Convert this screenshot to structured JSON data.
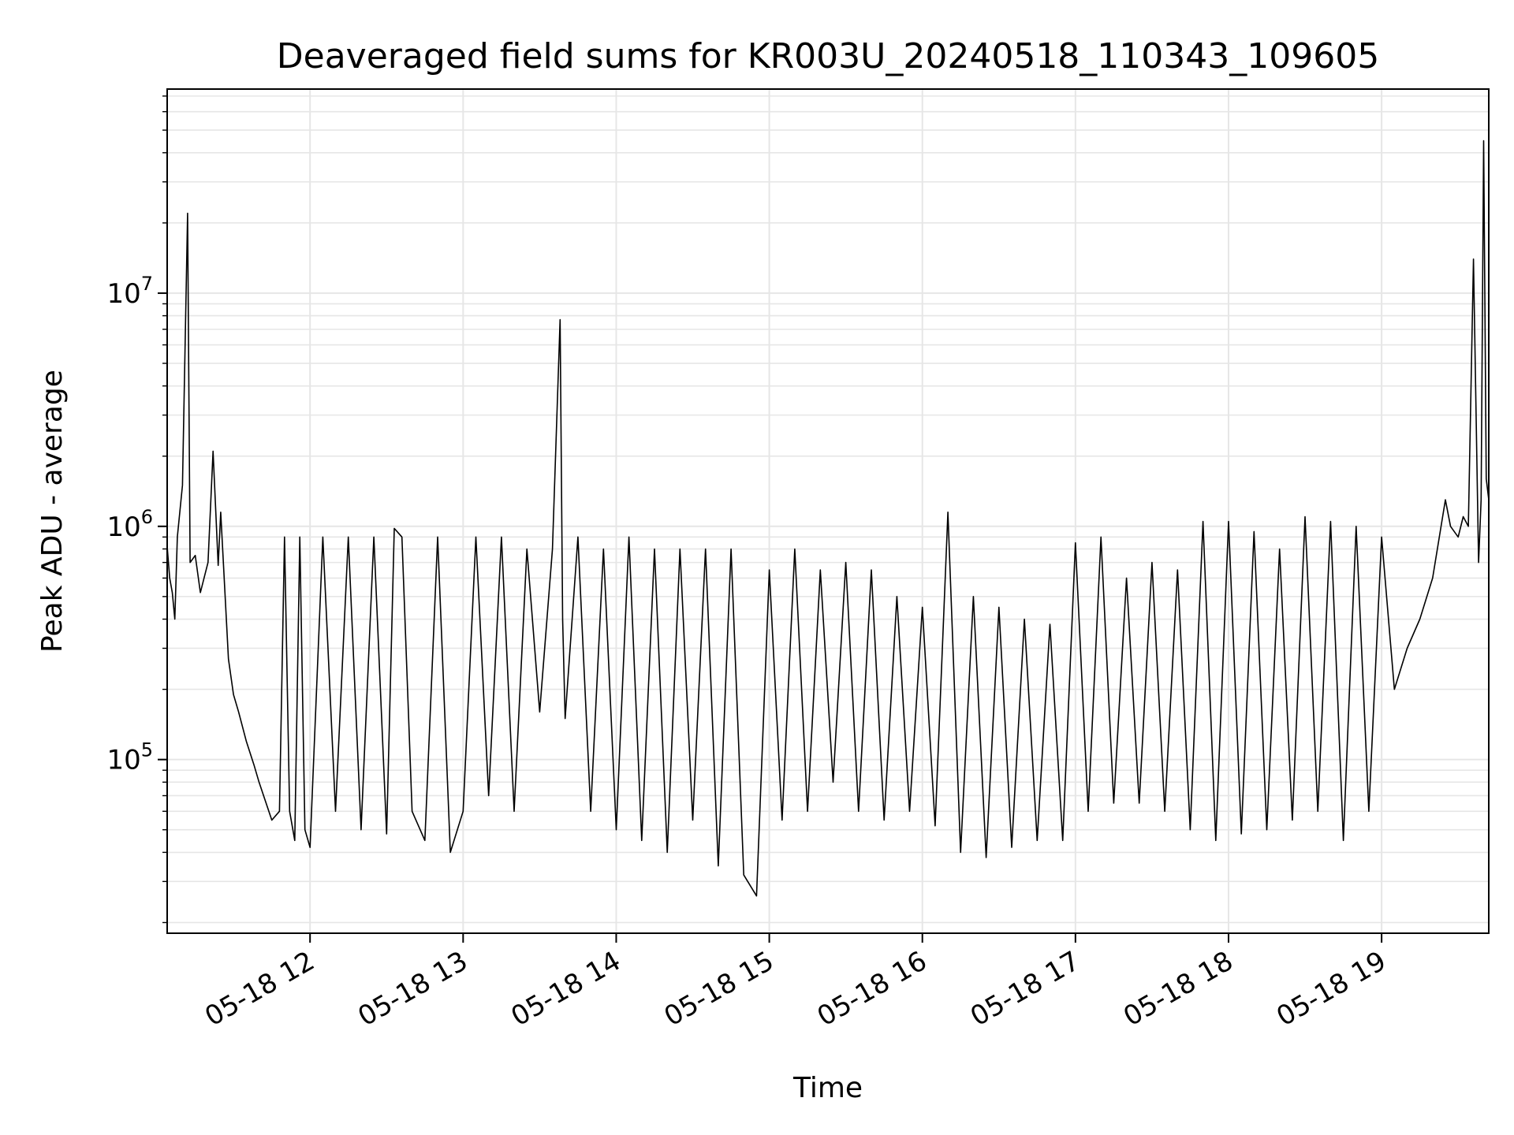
{
  "chart_data": {
    "type": "line",
    "title": "Deaveraged field sums for KR003U_20240518_110343_109605",
    "xlabel": "Time",
    "ylabel": "Peak ADU - average",
    "y_scale": "log",
    "ylim": [
      18000,
      75000000
    ],
    "xlim": [
      "05-18 11:04",
      "05-18 19:42"
    ],
    "grid": true,
    "line_color": "#000000",
    "grid_color": "#e6e6e6",
    "x_ticks": [
      {
        "t": "05-18 12:00",
        "label": "05-18 12"
      },
      {
        "t": "05-18 13:00",
        "label": "05-18 13"
      },
      {
        "t": "05-18 14:00",
        "label": "05-18 14"
      },
      {
        "t": "05-18 15:00",
        "label": "05-18 15"
      },
      {
        "t": "05-18 16:00",
        "label": "05-18 16"
      },
      {
        "t": "05-18 17:00",
        "label": "05-18 17"
      },
      {
        "t": "05-18 18:00",
        "label": "05-18 18"
      },
      {
        "t": "05-18 19:00",
        "label": "05-18 19"
      }
    ],
    "y_ticks": [
      {
        "value": 100000,
        "base": "10",
        "exp": "5"
      },
      {
        "value": 1000000,
        "base": "10",
        "exp": "6"
      },
      {
        "value": 10000000,
        "base": "10",
        "exp": "7"
      }
    ],
    "series": [
      {
        "x": [
          "05-18 11:04",
          "05-18 11:05",
          "05-18 11:06",
          "05-18 11:07",
          "05-18 11:08",
          "05-18 11:10",
          "05-18 11:12",
          "05-18 11:13",
          "05-18 11:15",
          "05-18 11:17",
          "05-18 11:20",
          "05-18 11:22",
          "05-18 11:24",
          "05-18 11:25",
          "05-18 11:28",
          "05-18 11:30",
          "05-18 11:32",
          "05-18 11:35",
          "05-18 11:38",
          "05-18 11:40",
          "05-18 11:45",
          "05-18 11:48",
          "05-18 11:50",
          "05-18 11:52",
          "05-18 11:54",
          "05-18 11:56",
          "05-18 11:58",
          "05-18 12:00",
          "05-18 12:05",
          "05-18 12:10",
          "05-18 12:15",
          "05-18 12:20",
          "05-18 12:25",
          "05-18 12:30",
          "05-18 12:33",
          "05-18 12:36",
          "05-18 12:40",
          "05-18 12:45",
          "05-18 12:50",
          "05-18 12:55",
          "05-18 13:00",
          "05-18 13:05",
          "05-18 13:10",
          "05-18 13:15",
          "05-18 13:20",
          "05-18 13:25",
          "05-18 13:30",
          "05-18 13:35",
          "05-18 13:38",
          "05-18 13:39",
          "05-18 13:40",
          "05-18 13:45",
          "05-18 13:50",
          "05-18 13:55",
          "05-18 14:00",
          "05-18 14:05",
          "05-18 14:10",
          "05-18 14:15",
          "05-18 14:20",
          "05-18 14:25",
          "05-18 14:30",
          "05-18 14:35",
          "05-18 14:40",
          "05-18 14:45",
          "05-18 14:50",
          "05-18 14:55",
          "05-18 15:00",
          "05-18 15:05",
          "05-18 15:10",
          "05-18 15:15",
          "05-18 15:20",
          "05-18 15:25",
          "05-18 15:30",
          "05-18 15:35",
          "05-18 15:40",
          "05-18 15:45",
          "05-18 15:50",
          "05-18 15:55",
          "05-18 16:00",
          "05-18 16:05",
          "05-18 16:10",
          "05-18 16:15",
          "05-18 16:20",
          "05-18 16:25",
          "05-18 16:30",
          "05-18 16:35",
          "05-18 16:40",
          "05-18 16:45",
          "05-18 16:50",
          "05-18 16:55",
          "05-18 17:00",
          "05-18 17:05",
          "05-18 17:10",
          "05-18 17:15",
          "05-18 17:20",
          "05-18 17:25",
          "05-18 17:30",
          "05-18 17:35",
          "05-18 17:40",
          "05-18 17:45",
          "05-18 17:50",
          "05-18 17:55",
          "05-18 18:00",
          "05-18 18:05",
          "05-18 18:10",
          "05-18 18:15",
          "05-18 18:20",
          "05-18 18:25",
          "05-18 18:30",
          "05-18 18:35",
          "05-18 18:40",
          "05-18 18:45",
          "05-18 18:50",
          "05-18 18:55",
          "05-18 19:00",
          "05-18 19:05",
          "05-18 19:10",
          "05-18 19:15",
          "05-18 19:20",
          "05-18 19:25",
          "05-18 19:27",
          "05-18 19:30",
          "05-18 19:32",
          "05-18 19:34",
          "05-18 19:36",
          "05-18 19:38",
          "05-18 19:39",
          "05-18 19:40",
          "05-18 19:41",
          "05-18 19:42"
        ],
        "y": [
          820000,
          600000,
          520000,
          400000,
          900000,
          1500000,
          22000000,
          700000,
          750000,
          520000,
          700000,
          2100000,
          680000,
          1150000,
          270000,
          190000,
          160000,
          120000,
          95000,
          80000,
          55000,
          60000,
          900000,
          60000,
          45000,
          900000,
          50000,
          42000,
          900000,
          60000,
          900000,
          50000,
          900000,
          48000,
          980000,
          900000,
          60000,
          45000,
          900000,
          40000,
          60000,
          900000,
          70000,
          900000,
          60000,
          800000,
          160000,
          800000,
          7700000,
          400000,
          150000,
          900000,
          60000,
          800000,
          50000,
          900000,
          45000,
          800000,
          40000,
          800000,
          55000,
          800000,
          35000,
          800000,
          32000,
          26000,
          650000,
          55000,
          800000,
          60000,
          650000,
          80000,
          700000,
          60000,
          650000,
          55000,
          500000,
          60000,
          450000,
          52000,
          1150000,
          40000,
          500000,
          38000,
          450000,
          42000,
          400000,
          45000,
          380000,
          45000,
          850000,
          60000,
          900000,
          65000,
          600000,
          65000,
          700000,
          60000,
          650000,
          50000,
          1050000,
          45000,
          1050000,
          48000,
          950000,
          50000,
          800000,
          55000,
          1100000,
          60000,
          1050000,
          45000,
          1000000,
          60000,
          900000,
          200000,
          300000,
          400000,
          600000,
          1300000,
          1000000,
          900000,
          1100000,
          1000000,
          14000000,
          700000,
          1300000,
          45000000,
          1600000,
          1300000
        ]
      }
    ]
  }
}
